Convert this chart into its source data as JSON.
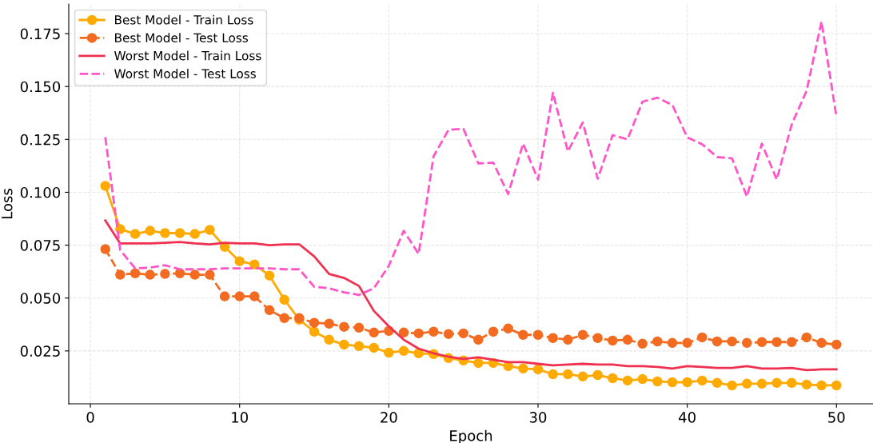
{
  "chart_data": {
    "type": "line",
    "xlabel": "Epoch",
    "ylabel": "Loss",
    "x": [
      1,
      2,
      3,
      4,
      5,
      6,
      7,
      8,
      9,
      10,
      11,
      12,
      13,
      14,
      15,
      16,
      17,
      18,
      19,
      20,
      21,
      22,
      23,
      24,
      25,
      26,
      27,
      28,
      29,
      30,
      31,
      32,
      33,
      34,
      35,
      36,
      37,
      38,
      39,
      40,
      41,
      42,
      43,
      44,
      45,
      46,
      47,
      48,
      49,
      50
    ],
    "series": [
      {
        "name": "Best Model - Train Loss",
        "color": "#ffaa00",
        "marker": "circle",
        "line_style": "solid",
        "values": [
          0.103,
          0.0826,
          0.0803,
          0.0818,
          0.0807,
          0.0807,
          0.0803,
          0.0822,
          0.0742,
          0.0674,
          0.0659,
          0.0606,
          0.0492,
          0.0398,
          0.0341,
          0.0303,
          0.028,
          0.0273,
          0.0265,
          0.0242,
          0.025,
          0.0239,
          0.0235,
          0.0216,
          0.0205,
          0.0193,
          0.0193,
          0.0178,
          0.0167,
          0.0163,
          0.014,
          0.014,
          0.0129,
          0.0136,
          0.0121,
          0.011,
          0.0117,
          0.0106,
          0.0102,
          0.0102,
          0.011,
          0.0099,
          0.0087,
          0.0095,
          0.0095,
          0.0099,
          0.0099,
          0.0091,
          0.0087,
          0.0087
        ]
      },
      {
        "name": "Best Model - Test Loss",
        "color": "#f26b21",
        "marker": "circle",
        "line_style": "dashed",
        "values": [
          0.0731,
          0.061,
          0.0617,
          0.061,
          0.0614,
          0.0617,
          0.061,
          0.061,
          0.0508,
          0.0508,
          0.0508,
          0.0443,
          0.0405,
          0.0405,
          0.0383,
          0.0379,
          0.0364,
          0.036,
          0.0337,
          0.0345,
          0.0337,
          0.0333,
          0.0341,
          0.033,
          0.0333,
          0.0303,
          0.0341,
          0.0356,
          0.0326,
          0.0326,
          0.0311,
          0.0303,
          0.0326,
          0.0311,
          0.0299,
          0.0303,
          0.0284,
          0.0295,
          0.0288,
          0.0288,
          0.0314,
          0.0295,
          0.0295,
          0.0288,
          0.0292,
          0.0292,
          0.0292,
          0.0314,
          0.0288,
          0.028
        ]
      },
      {
        "name": "Worst Model - Train Loss",
        "color": "#f03050",
        "marker": "none",
        "line_style": "solid",
        "values": [
          0.0867,
          0.0758,
          0.0758,
          0.0758,
          0.0761,
          0.0765,
          0.0758,
          0.0754,
          0.0761,
          0.0758,
          0.0758,
          0.075,
          0.0754,
          0.0754,
          0.0697,
          0.0614,
          0.0595,
          0.0557,
          0.0439,
          0.0367,
          0.0303,
          0.0261,
          0.0239,
          0.0223,
          0.0212,
          0.022,
          0.0208,
          0.0197,
          0.0197,
          0.0189,
          0.0182,
          0.0186,
          0.0189,
          0.0186,
          0.0186,
          0.0178,
          0.0178,
          0.0174,
          0.0167,
          0.0178,
          0.0174,
          0.017,
          0.017,
          0.0178,
          0.0167,
          0.0167,
          0.017,
          0.0159,
          0.0163,
          0.0163
        ]
      },
      {
        "name": "Worst Model - Test Loss",
        "color": "#ff55c8",
        "marker": "none",
        "line_style": "dashed",
        "values": [
          0.126,
          0.0727,
          0.064,
          0.0644,
          0.0655,
          0.0636,
          0.0636,
          0.0636,
          0.064,
          0.064,
          0.064,
          0.064,
          0.0636,
          0.0636,
          0.0553,
          0.0546,
          0.0527,
          0.0515,
          0.0546,
          0.0652,
          0.0818,
          0.0708,
          0.117,
          0.1295,
          0.13,
          0.1136,
          0.114,
          0.0992,
          0.123,
          0.106,
          0.147,
          0.1193,
          0.133,
          0.1064,
          0.127,
          0.125,
          0.1428,
          0.1447,
          0.1413,
          0.126,
          0.1227,
          0.1167,
          0.116,
          0.098,
          0.123,
          0.106,
          0.132,
          0.148,
          0.1807,
          0.1356
        ]
      }
    ],
    "xlim": [
      -1.45,
      52.45
    ],
    "ylim": [
      0,
      0.189
    ],
    "xticks": [
      0,
      10,
      20,
      30,
      40,
      50
    ],
    "yticks": [
      {
        "value": 0.025,
        "label": "0.025"
      },
      {
        "value": 0.05,
        "label": "0.050"
      },
      {
        "value": 0.075,
        "label": "0.075"
      },
      {
        "value": 0.1,
        "label": "0.100"
      },
      {
        "value": 0.125,
        "label": "0.125"
      },
      {
        "value": 0.15,
        "label": "0.150"
      },
      {
        "value": 0.175,
        "label": "0.175"
      }
    ],
    "grid": true,
    "legend": "top left"
  }
}
